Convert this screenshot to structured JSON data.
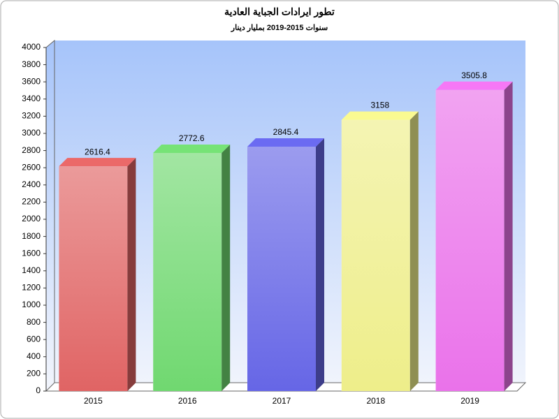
{
  "chart_data": {
    "type": "bar3d",
    "title": "تطور ايرادات الجباية العادية",
    "subtitle": "سنوات 2015-2019 بمليار دينار",
    "categories": [
      "2015",
      "2016",
      "2017",
      "2018",
      "2019"
    ],
    "values": [
      2616.4,
      2772.6,
      2845.4,
      3158,
      3505.8
    ],
    "colors": [
      "#e06464",
      "#70d870",
      "#6666e6",
      "#eeee8a",
      "#ea72ea"
    ],
    "ylim": [
      0,
      4000
    ],
    "yticks": [
      0,
      200,
      400,
      600,
      800,
      1000,
      1200,
      1400,
      1600,
      1800,
      2000,
      2200,
      2400,
      2600,
      2800,
      3000,
      3200,
      3400,
      3600,
      3800,
      4000
    ]
  }
}
